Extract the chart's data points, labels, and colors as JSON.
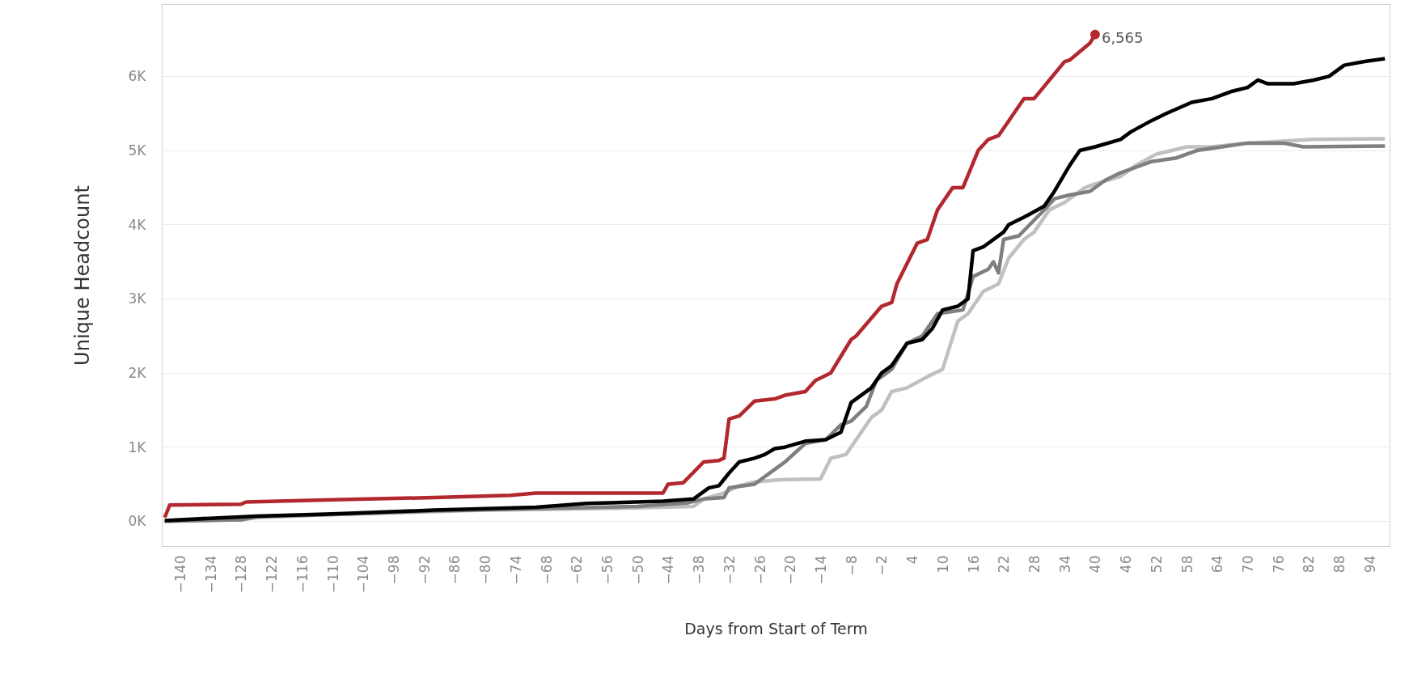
{
  "chart_data": {
    "type": "line",
    "xlabel": "Days from Start of Term",
    "ylabel": "Unique Headcount",
    "xlim": [
      -143.5,
      98
    ],
    "ylim": [
      -340,
      6970
    ],
    "xticks": [
      -140,
      -134,
      -128,
      -122,
      -116,
      -110,
      -104,
      -98,
      -92,
      -86,
      -80,
      -74,
      -68,
      -62,
      -56,
      -50,
      -44,
      -38,
      -32,
      -26,
      -20,
      -14,
      -8,
      -2,
      4,
      10,
      16,
      22,
      28,
      34,
      40,
      46,
      52,
      58,
      64,
      70,
      76,
      82,
      88,
      94
    ],
    "yticks": [
      {
        "value": 0,
        "label": "0K"
      },
      {
        "value": 1000,
        "label": "1K"
      },
      {
        "value": 2000,
        "label": "2K"
      },
      {
        "value": 3000,
        "label": "3K"
      },
      {
        "value": 4000,
        "label": "4K"
      },
      {
        "value": 5000,
        "label": "5K"
      },
      {
        "value": 6000,
        "label": "6K"
      }
    ],
    "grid": "y",
    "marker": "none",
    "line_style": "solid",
    "annotations": [
      {
        "text": "6,565",
        "x": 40,
        "y": 6565
      }
    ],
    "series": [
      {
        "color": "#c0c0c0",
        "x": [
          -143,
          -128,
          -125,
          -110,
          -80,
          -50,
          -39,
          -37,
          -33,
          -30,
          -27,
          -22,
          -14,
          -12,
          -9,
          -7,
          -4,
          -2,
          0,
          3,
          7,
          10,
          13,
          15,
          18,
          21,
          23,
          26,
          28,
          31,
          34,
          38,
          40,
          45,
          48,
          52,
          58,
          63,
          70,
          83,
          97
        ],
        "values": [
          0,
          20,
          50,
          90,
          150,
          180,
          200,
          300,
          380,
          480,
          530,
          560,
          570,
          850,
          900,
          1100,
          1400,
          1500,
          1750,
          1800,
          1950,
          2050,
          2700,
          2800,
          3100,
          3200,
          3550,
          3800,
          3900,
          4200,
          4300,
          4500,
          4550,
          4650,
          4800,
          4950,
          5050,
          5050,
          5100,
          5150,
          5160
        ]
      },
      {
        "color": "#7f7f7f",
        "x": [
          -143,
          -128,
          -125,
          -110,
          -90,
          -70,
          -50,
          -40,
          -37,
          -33,
          -32,
          -27,
          -23,
          -21,
          -17,
          -13,
          -10,
          -8,
          -5,
          -3,
          0,
          3,
          6,
          9,
          14,
          16,
          19,
          20,
          21,
          22,
          25,
          30,
          32,
          35,
          39,
          42,
          45,
          51,
          56,
          60,
          65,
          70,
          77,
          81,
          97
        ],
        "values": [
          0,
          20,
          60,
          90,
          140,
          170,
          200,
          250,
          300,
          320,
          450,
          500,
          700,
          800,
          1050,
          1100,
          1300,
          1350,
          1550,
          1900,
          2050,
          2400,
          2500,
          2800,
          2850,
          3300,
          3400,
          3500,
          3350,
          3800,
          3850,
          4200,
          4350,
          4400,
          4450,
          4600,
          4700,
          4850,
          4900,
          5000,
          5050,
          5100,
          5100,
          5050,
          5060
        ]
      },
      {
        "color": "#000000",
        "x": [
          -143,
          -125,
          -110,
          -90,
          -70,
          -60,
          -45,
          -39,
          -36,
          -34,
          -32,
          -30,
          -27,
          -25,
          -23,
          -21,
          -17,
          -13,
          -10,
          -8,
          -7,
          -4,
          -2,
          0,
          3,
          6,
          8,
          10,
          13,
          15,
          16,
          18,
          22,
          23,
          26,
          30,
          32,
          35,
          37,
          40,
          45,
          47,
          51,
          54,
          59,
          63,
          67,
          70,
          72,
          74,
          79,
          83,
          86,
          89,
          93,
          97
        ],
        "values": [
          10,
          70,
          100,
          150,
          190,
          240,
          270,
          300,
          450,
          480,
          650,
          800,
          850,
          900,
          980,
          1000,
          1080,
          1100,
          1200,
          1600,
          1650,
          1800,
          2000,
          2100,
          2400,
          2450,
          2600,
          2850,
          2900,
          3000,
          3650,
          3700,
          3900,
          4000,
          4100,
          4250,
          4450,
          4800,
          5000,
          5050,
          5150,
          5250,
          5400,
          5500,
          5650,
          5700,
          5800,
          5850,
          5950,
          5900,
          5900,
          5950,
          6000,
          6150,
          6200,
          6240
        ]
      },
      {
        "color": "#b2282e",
        "x": [
          -143,
          -142,
          -128,
          -127,
          -110,
          -90,
          -75,
          -70,
          -45,
          -44,
          -41,
          -37,
          -34,
          -33,
          -32,
          -30,
          -27,
          -23,
          -21,
          -17,
          -15,
          -12,
          -8,
          -7,
          -2,
          0,
          1,
          5,
          7,
          9,
          12,
          14,
          17,
          19,
          21,
          23,
          26,
          28,
          31,
          34,
          35,
          39,
          40
        ],
        "values": [
          50,
          220,
          230,
          260,
          290,
          320,
          350,
          380,
          380,
          500,
          520,
          800,
          820,
          850,
          1380,
          1420,
          1620,
          1650,
          1700,
          1750,
          1900,
          2000,
          2450,
          2500,
          2900,
          2950,
          3200,
          3750,
          3800,
          4200,
          4500,
          4500,
          5000,
          5150,
          5200,
          5400,
          5700,
          5700,
          5950,
          6200,
          6220,
          6450,
          6565
        ]
      }
    ]
  }
}
